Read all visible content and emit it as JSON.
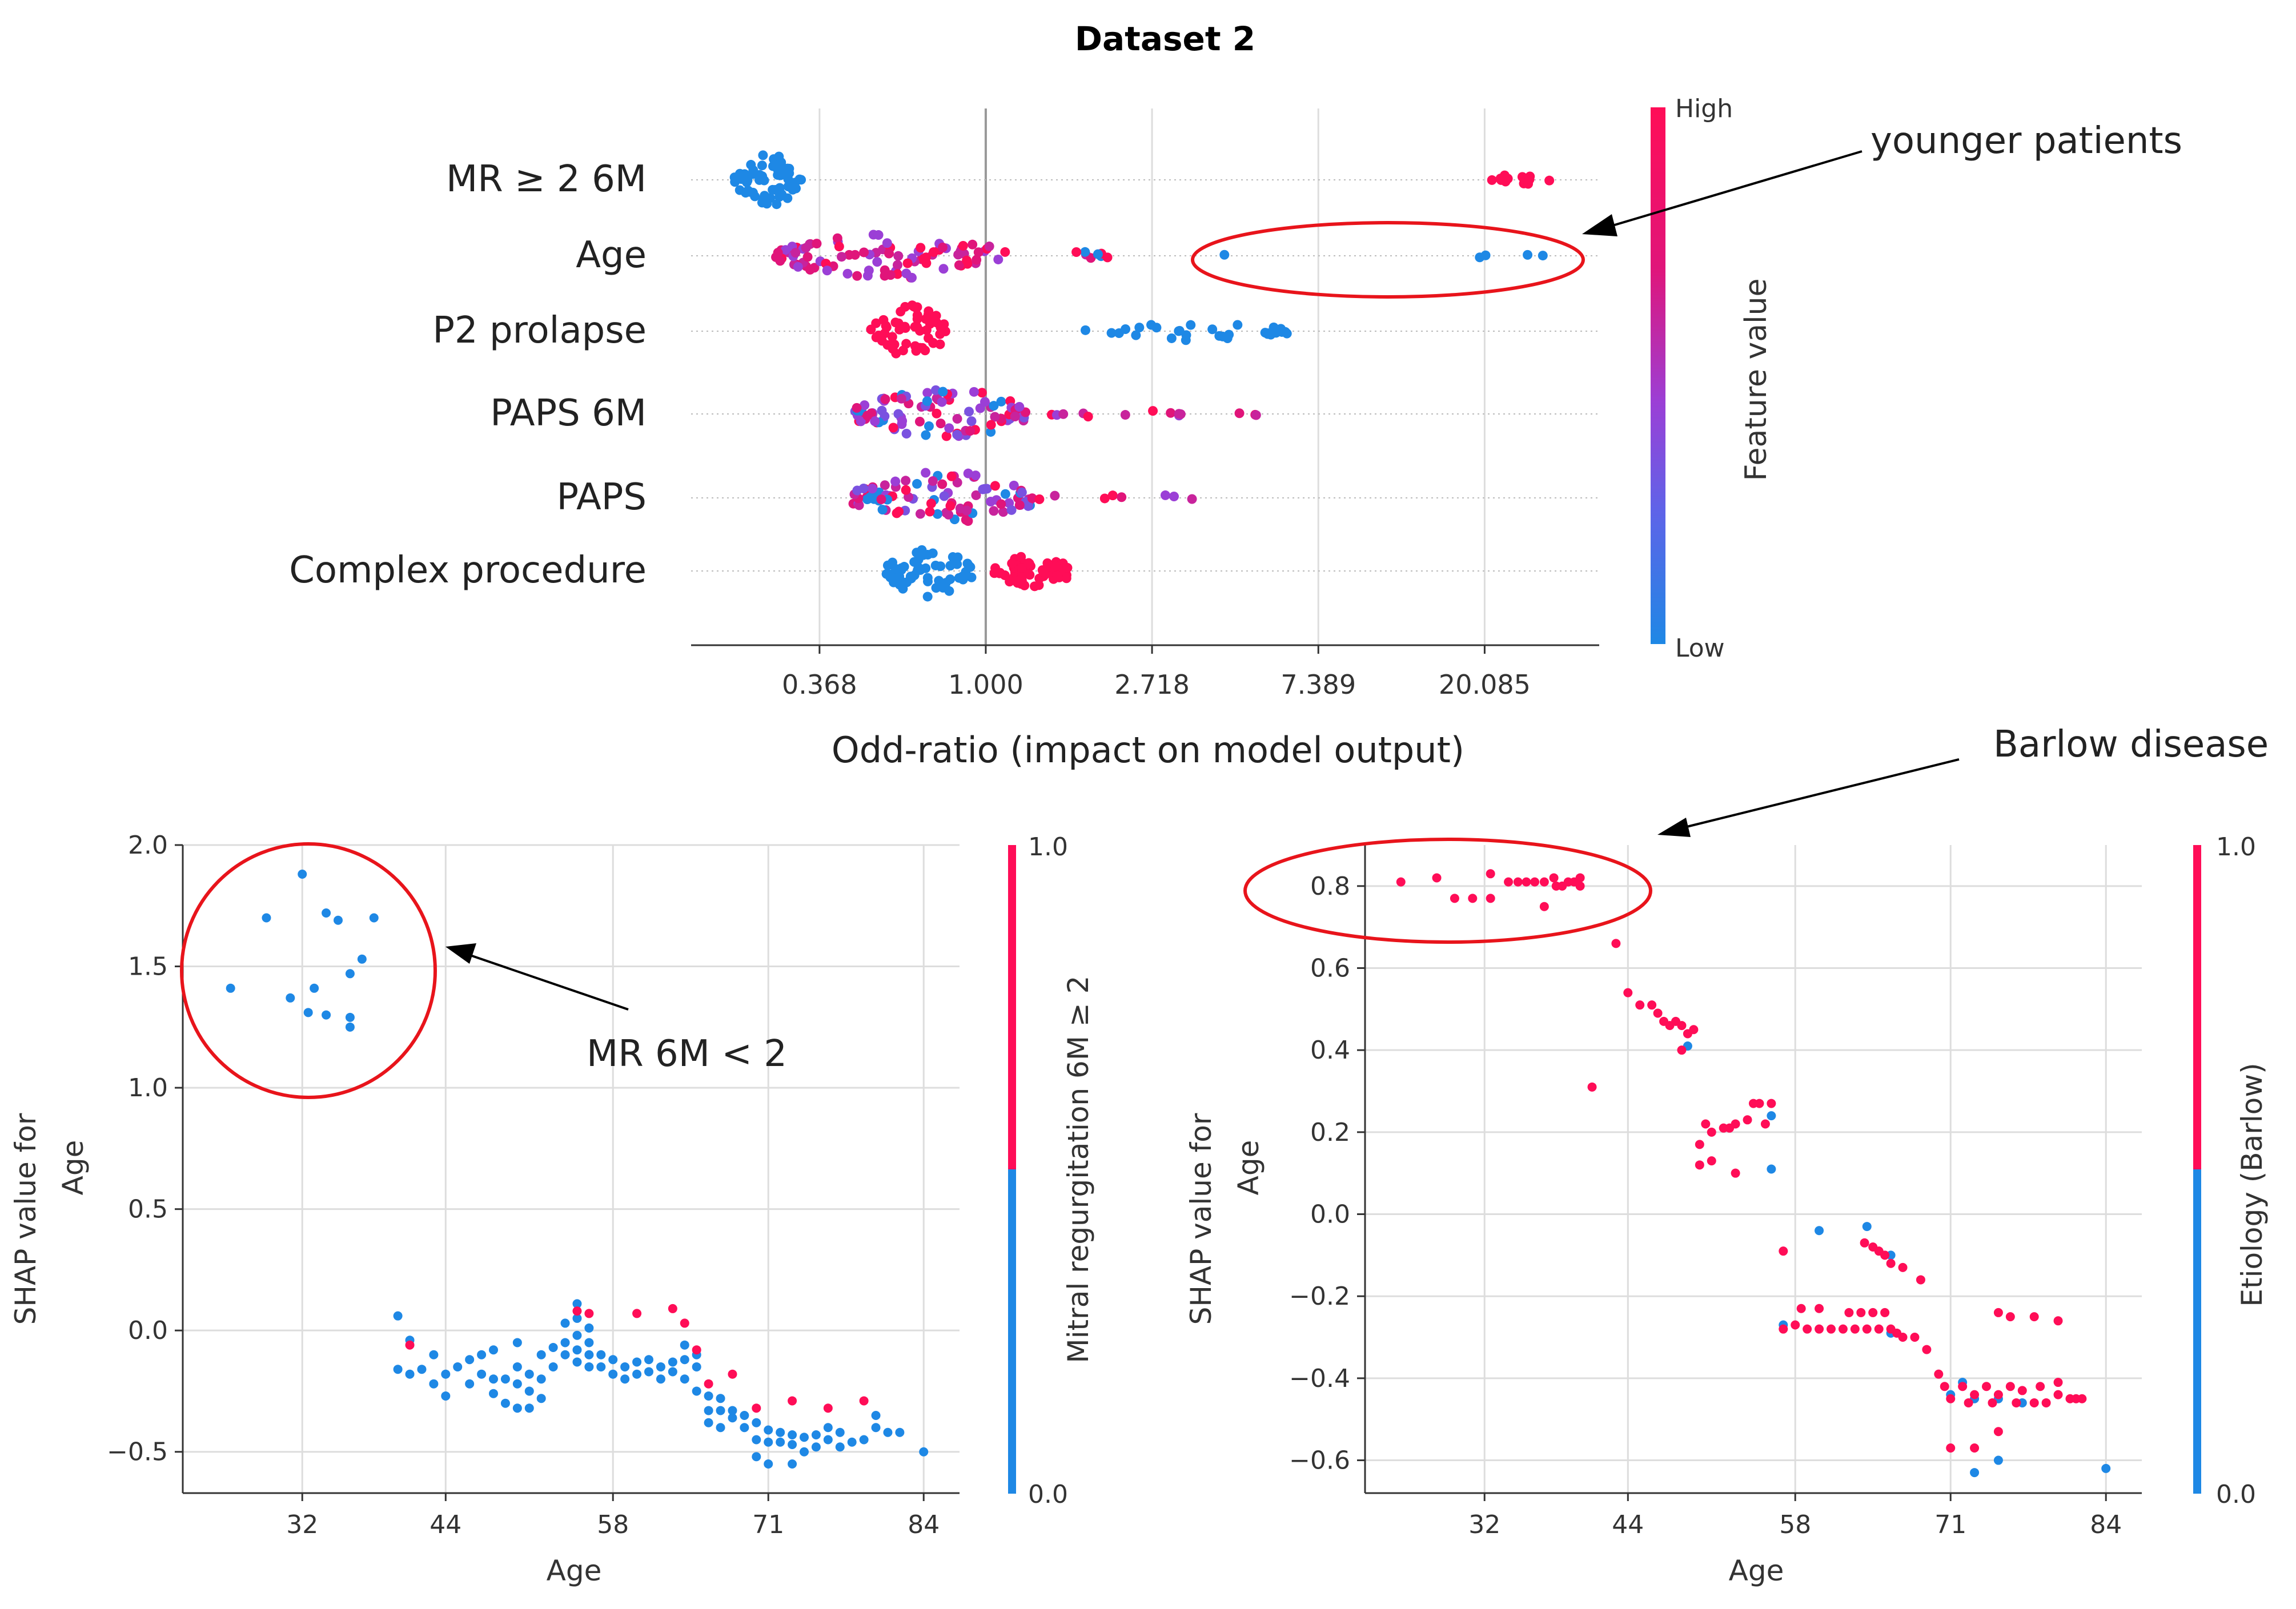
{
  "figure_title": "Dataset 2",
  "colors": {
    "high": "#ff0d57",
    "low": "#1e88e5",
    "annotation": "#e8141b",
    "grid": "#cccccc",
    "axis": "#333333"
  },
  "chart_data": [
    {
      "type": "scatter",
      "subtype": "shap-beeswarm",
      "title": "Dataset 2",
      "xlabel": "Odd-ratio (impact on model output)",
      "xscale": "log",
      "xlim": [
        0.17,
        40
      ],
      "x_ticks": [
        "0.368",
        "1.000",
        "2.718",
        "7.389",
        "20.085"
      ],
      "x_tick_values": [
        0.368,
        1.0,
        2.718,
        7.389,
        20.085
      ],
      "features": [
        {
          "name": "MR ≥ 2 6M",
          "clusters": [
            {
              "lo": 0.22,
              "hi": 0.33,
              "n": 60,
              "color": "low",
              "spread": 1.0
            },
            {
              "lo": 20.0,
              "hi": 30.0,
              "n": 14,
              "color": "high",
              "spread": 0.2
            }
          ]
        },
        {
          "name": "Age",
          "clusters": [
            {
              "lo": 0.28,
              "hi": 1.15,
              "n": 95,
              "color": "mix-high",
              "spread": 0.9
            },
            {
              "lo": 1.6,
              "hi": 2.1,
              "n": 8,
              "color": "mix",
              "spread": 0.2
            }
          ],
          "points": [
            {
              "x": 4.2,
              "color": "low"
            },
            {
              "x": 19.5,
              "color": "low"
            },
            {
              "x": 20.2,
              "color": "low"
            },
            {
              "x": 26.0,
              "color": "low"
            },
            {
              "x": 28.5,
              "color": "low"
            }
          ]
        },
        {
          "name": "P2 prolapse",
          "clusters": [
            {
              "lo": 0.5,
              "hi": 0.8,
              "n": 55,
              "color": "high",
              "spread": 1.0
            },
            {
              "lo": 1.8,
              "hi": 6.2,
              "n": 30,
              "color": "low",
              "spread": 0.35
            }
          ]
        },
        {
          "name": "PAPS 6M",
          "clusters": [
            {
              "lo": 0.45,
              "hi": 1.3,
              "n": 95,
              "color": "mix",
              "spread": 1.0
            },
            {
              "lo": 1.4,
              "hi": 5.3,
              "n": 14,
              "color": "mix-high",
              "spread": 0.15
            }
          ]
        },
        {
          "name": "PAPS",
          "clusters": [
            {
              "lo": 0.45,
              "hi": 1.35,
              "n": 95,
              "color": "mix",
              "spread": 1.0
            },
            {
              "lo": 1.3,
              "hi": 3.7,
              "n": 9,
              "color": "mix-high",
              "spread": 0.15
            }
          ]
        },
        {
          "name": "Complex procedure",
          "clusters": [
            {
              "lo": 0.55,
              "hi": 0.92,
              "n": 60,
              "color": "low",
              "spread": 1.0
            },
            {
              "lo": 1.05,
              "hi": 1.7,
              "n": 60,
              "color": "high",
              "spread": 0.6
            }
          ]
        }
      ],
      "colorbar": {
        "label": "Feature value",
        "high_label": "High",
        "low_label": "Low"
      },
      "annotations": [
        {
          "text": "younger patients",
          "target": "Age",
          "x_range": [
            3.3,
            33.0
          ]
        }
      ]
    },
    {
      "type": "scatter",
      "subtype": "shap-dependence",
      "xlabel": "Age",
      "ylabel_line1": "SHAP value for",
      "ylabel_line2": "Age",
      "xlim": [
        22,
        87
      ],
      "ylim": [
        -0.67,
        2.0
      ],
      "x_ticks": [
        32,
        44,
        58,
        71,
        84
      ],
      "y_ticks": [
        -0.5,
        0.0,
        0.5,
        1.0,
        1.5,
        2.0
      ],
      "y_tick_labels": [
        "−0.5",
        "0.0",
        "0.5",
        "1.0",
        "1.5",
        "2.0"
      ],
      "colorbar": {
        "label": "Mitral regurgitation 6M ≥ 2",
        "max_label": "1.0",
        "min_label": "0.0"
      },
      "annotation": {
        "text": "MR 6M < 2",
        "circle_center": [
          32,
          1.5
        ],
        "circle_r_age": 11
      },
      "points_low": [
        [
          26,
          1.41
        ],
        [
          29,
          1.7
        ],
        [
          31,
          1.37
        ],
        [
          33,
          1.41
        ],
        [
          32,
          1.88
        ],
        [
          34,
          1.72
        ],
        [
          35,
          1.69
        ],
        [
          36,
          1.47
        ],
        [
          36,
          1.29
        ],
        [
          37,
          1.53
        ],
        [
          38,
          1.7
        ],
        [
          34,
          1.3
        ],
        [
          36,
          1.25
        ],
        [
          32.5,
          1.31
        ],
        [
          40,
          0.06
        ],
        [
          40,
          -0.16
        ],
        [
          41,
          -0.04
        ],
        [
          41,
          -0.18
        ],
        [
          42,
          -0.16
        ],
        [
          43,
          -0.1
        ],
        [
          43,
          -0.22
        ],
        [
          44,
          -0.27
        ],
        [
          44,
          -0.18
        ],
        [
          45,
          -0.15
        ],
        [
          46,
          -0.12
        ],
        [
          46,
          -0.22
        ],
        [
          47,
          -0.18
        ],
        [
          47,
          -0.1
        ],
        [
          48,
          -0.08
        ],
        [
          48,
          -0.2
        ],
        [
          48,
          -0.26
        ],
        [
          49,
          -0.2
        ],
        [
          49,
          -0.3
        ],
        [
          50,
          -0.15
        ],
        [
          50,
          -0.05
        ],
        [
          50,
          -0.22
        ],
        [
          50,
          -0.32
        ],
        [
          51,
          -0.18
        ],
        [
          51,
          -0.25
        ],
        [
          51,
          -0.32
        ],
        [
          52,
          -0.2
        ],
        [
          52,
          -0.28
        ],
        [
          52,
          -0.1
        ],
        [
          53,
          -0.07
        ],
        [
          53,
          -0.15
        ],
        [
          54,
          -0.05
        ],
        [
          54,
          -0.1
        ],
        [
          54,
          0.03
        ],
        [
          55,
          0.11
        ],
        [
          55,
          0.05
        ],
        [
          55,
          -0.02
        ],
        [
          55,
          -0.08
        ],
        [
          55,
          -0.13
        ],
        [
          56,
          0.01
        ],
        [
          56,
          -0.05
        ],
        [
          56,
          -0.1
        ],
        [
          56,
          -0.15
        ],
        [
          57,
          -0.1
        ],
        [
          57,
          -0.15
        ],
        [
          58,
          -0.12
        ],
        [
          58,
          -0.18
        ],
        [
          59,
          -0.15
        ],
        [
          59,
          -0.2
        ],
        [
          60,
          -0.13
        ],
        [
          60,
          -0.18
        ],
        [
          61,
          -0.17
        ],
        [
          61,
          -0.12
        ],
        [
          62,
          -0.15
        ],
        [
          62,
          -0.2
        ],
        [
          63,
          -0.13
        ],
        [
          63,
          -0.17
        ],
        [
          64,
          -0.06
        ],
        [
          64,
          -0.12
        ],
        [
          64,
          -0.2
        ],
        [
          65,
          -0.1
        ],
        [
          65,
          -0.15
        ],
        [
          65,
          -0.25
        ],
        [
          66,
          -0.27
        ],
        [
          66,
          -0.33
        ],
        [
          66,
          -0.38
        ],
        [
          67,
          -0.28
        ],
        [
          67,
          -0.33
        ],
        [
          67,
          -0.4
        ],
        [
          68,
          -0.33
        ],
        [
          68,
          -0.36
        ],
        [
          69,
          -0.35
        ],
        [
          69,
          -0.4
        ],
        [
          70,
          -0.38
        ],
        [
          70,
          -0.45
        ],
        [
          70,
          -0.52
        ],
        [
          71,
          -0.41
        ],
        [
          71,
          -0.46
        ],
        [
          71,
          -0.55
        ],
        [
          72,
          -0.42
        ],
        [
          72,
          -0.46
        ],
        [
          73,
          -0.43
        ],
        [
          73,
          -0.47
        ],
        [
          73,
          -0.55
        ],
        [
          74,
          -0.44
        ],
        [
          74,
          -0.5
        ],
        [
          75,
          -0.43
        ],
        [
          75,
          -0.48
        ],
        [
          76,
          -0.4
        ],
        [
          76,
          -0.45
        ],
        [
          77,
          -0.42
        ],
        [
          77,
          -0.48
        ],
        [
          78,
          -0.46
        ],
        [
          79,
          -0.45
        ],
        [
          80,
          -0.4
        ],
        [
          80,
          -0.35
        ],
        [
          81,
          -0.42
        ],
        [
          82,
          -0.42
        ],
        [
          84,
          -0.5
        ]
      ],
      "points_high": [
        [
          41,
          -0.06
        ],
        [
          55,
          0.08
        ],
        [
          56,
          0.07
        ],
        [
          60,
          0.07
        ],
        [
          63,
          0.09
        ],
        [
          64,
          0.03
        ],
        [
          65,
          -0.08
        ],
        [
          66,
          -0.22
        ],
        [
          68,
          -0.18
        ],
        [
          70,
          -0.32
        ],
        [
          73,
          -0.29
        ],
        [
          76,
          -0.32
        ],
        [
          79,
          -0.29
        ]
      ]
    },
    {
      "type": "scatter",
      "subtype": "shap-dependence",
      "xlabel": "Age",
      "ylabel_line1": "SHAP value for",
      "ylabel_line2": "Age",
      "xlim": [
        22,
        87
      ],
      "ylim": [
        -0.68,
        0.9
      ],
      "x_ticks": [
        32,
        44,
        58,
        71,
        84
      ],
      "y_ticks": [
        -0.6,
        -0.4,
        -0.2,
        0.0,
        0.2,
        0.4,
        0.6,
        0.8
      ],
      "y_tick_labels": [
        "−0.6",
        "−0.4",
        "−0.2",
        "0.0",
        "0.2",
        "0.4",
        "0.6",
        "0.8"
      ],
      "colorbar": {
        "label": "Etiology (Barlow)",
        "max_label": "1.0",
        "min_label": "0.0"
      },
      "annotation": {
        "text": "Barlow disease",
        "ellipse_center": [
          33.5,
          0.79
        ],
        "ellipse_rx_age": 11,
        "ellipse_ry": 0.07
      },
      "points_high": [
        [
          25,
          0.81
        ],
        [
          28,
          0.82
        ],
        [
          29.5,
          0.77
        ],
        [
          31,
          0.77
        ],
        [
          32.5,
          0.77
        ],
        [
          32.5,
          0.83
        ],
        [
          34,
          0.81
        ],
        [
          34.8,
          0.81
        ],
        [
          35.5,
          0.81
        ],
        [
          36.2,
          0.81
        ],
        [
          37,
          0.81
        ],
        [
          37.8,
          0.82
        ],
        [
          38,
          0.8
        ],
        [
          38.5,
          0.8
        ],
        [
          39,
          0.81
        ],
        [
          39.5,
          0.81
        ],
        [
          40,
          0.82
        ],
        [
          40,
          0.8
        ],
        [
          37,
          0.75
        ],
        [
          43,
          0.66
        ],
        [
          44,
          0.54
        ],
        [
          45,
          0.51
        ],
        [
          46,
          0.51
        ],
        [
          46.5,
          0.49
        ],
        [
          47,
          0.47
        ],
        [
          47.5,
          0.46
        ],
        [
          48,
          0.47
        ],
        [
          48.5,
          0.46
        ],
        [
          49,
          0.44
        ],
        [
          48.5,
          0.4
        ],
        [
          49.5,
          0.45
        ],
        [
          41,
          0.31
        ],
        [
          50,
          0.12
        ],
        [
          50,
          0.17
        ],
        [
          50.5,
          0.22
        ],
        [
          51,
          0.2
        ],
        [
          51,
          0.13
        ],
        [
          52,
          0.21
        ],
        [
          52.5,
          0.21
        ],
        [
          53,
          0.22
        ],
        [
          53,
          0.1
        ],
        [
          54,
          0.23
        ],
        [
          54.5,
          0.27
        ],
        [
          55,
          0.27
        ],
        [
          55.5,
          0.22
        ],
        [
          56,
          0.27
        ],
        [
          57,
          -0.09
        ],
        [
          57,
          -0.28
        ],
        [
          58,
          -0.27
        ],
        [
          58.5,
          -0.23
        ],
        [
          59,
          -0.28
        ],
        [
          60,
          -0.28
        ],
        [
          60,
          -0.23
        ],
        [
          61,
          -0.28
        ],
        [
          62,
          -0.28
        ],
        [
          62.5,
          -0.24
        ],
        [
          63,
          -0.28
        ],
        [
          63.5,
          -0.24
        ],
        [
          64,
          -0.28
        ],
        [
          64.5,
          -0.24
        ],
        [
          65,
          -0.28
        ],
        [
          65.5,
          -0.24
        ],
        [
          66,
          -0.28
        ],
        [
          66.5,
          -0.29
        ],
        [
          67,
          -0.3
        ],
        [
          68,
          -0.3
        ],
        [
          69,
          -0.33
        ],
        [
          63.8,
          -0.07
        ],
        [
          64.5,
          -0.08
        ],
        [
          65,
          -0.09
        ],
        [
          65.5,
          -0.1
        ],
        [
          66,
          -0.12
        ],
        [
          67,
          -0.13
        ],
        [
          68.5,
          -0.16
        ],
        [
          70,
          -0.39
        ],
        [
          70.5,
          -0.42
        ],
        [
          71,
          -0.45
        ],
        [
          71,
          -0.57
        ],
        [
          72,
          -0.42
        ],
        [
          72.5,
          -0.46
        ],
        [
          73,
          -0.44
        ],
        [
          73,
          -0.57
        ],
        [
          74,
          -0.42
        ],
        [
          74.5,
          -0.46
        ],
        [
          75,
          -0.44
        ],
        [
          75,
          -0.53
        ],
        [
          76,
          -0.42
        ],
        [
          76.5,
          -0.46
        ],
        [
          77,
          -0.43
        ],
        [
          78,
          -0.46
        ],
        [
          78.5,
          -0.42
        ],
        [
          79,
          -0.46
        ],
        [
          80,
          -0.44
        ],
        [
          80,
          -0.41
        ],
        [
          81,
          -0.45
        ],
        [
          81.5,
          -0.45
        ],
        [
          82,
          -0.45
        ],
        [
          75,
          -0.24
        ],
        [
          76,
          -0.25
        ],
        [
          78,
          -0.25
        ],
        [
          80,
          -0.26
        ]
      ],
      "points_low": [
        [
          49,
          0.41
        ],
        [
          56,
          0.24
        ],
        [
          56,
          0.11
        ],
        [
          60,
          -0.04
        ],
        [
          64,
          -0.03
        ],
        [
          66,
          -0.1
        ],
        [
          57,
          -0.27
        ],
        [
          66,
          -0.29
        ],
        [
          71,
          -0.44
        ],
        [
          72,
          -0.41
        ],
        [
          73,
          -0.45
        ],
        [
          75,
          -0.45
        ],
        [
          77,
          -0.46
        ],
        [
          73,
          -0.63
        ],
        [
          75,
          -0.6
        ],
        [
          84,
          -0.62
        ]
      ]
    }
  ]
}
